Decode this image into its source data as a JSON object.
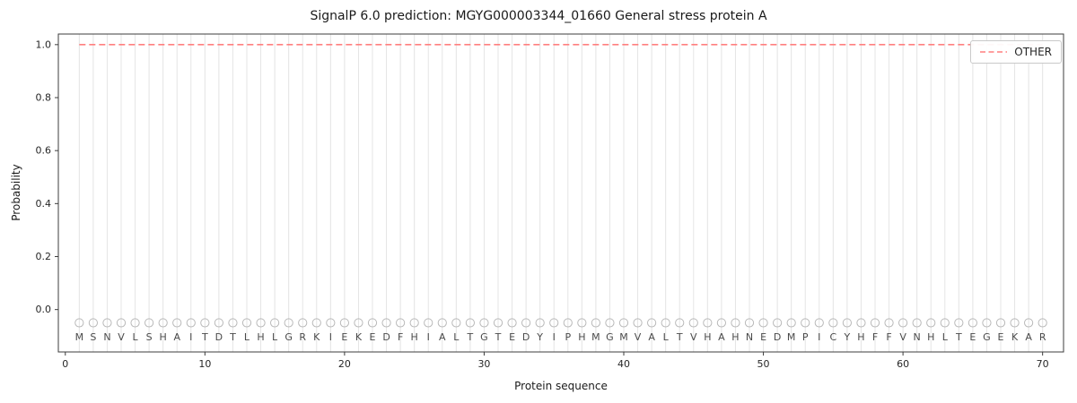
{
  "chart_data": {
    "type": "line",
    "title": "SignalP 6.0 prediction: MGYG000003344_01660 General stress protein A",
    "xlabel": "Protein sequence",
    "ylabel": "Probability",
    "xlim": [
      -0.5,
      71.5
    ],
    "ylim": [
      -0.16,
      1.04
    ],
    "xticks": [
      0,
      10,
      20,
      30,
      40,
      50,
      60,
      70
    ],
    "yticks": [
      "0.0",
      "0.2",
      "0.4",
      "0.6",
      "0.8",
      "1.0"
    ],
    "grid": "vertical-line-per-residue",
    "legend_position": "upper-right",
    "sequence": "MSNVLSHAITDTLHLGRKIEKEDFHIALTGTEDYIPHMGMVALTVHAHNEDMPICYHFFVNHLTEGEKAR",
    "marker_y": -0.05,
    "letter_y": -0.105,
    "series": [
      {
        "name": "OTHER",
        "color": "#ff7f7f",
        "line_style": "dashed",
        "x_start": 1,
        "values": [
          1.0,
          1.0,
          1.0,
          1.0,
          1.0,
          1.0,
          1.0,
          1.0,
          1.0,
          1.0,
          1.0,
          1.0,
          1.0,
          1.0,
          1.0,
          1.0,
          1.0,
          1.0,
          1.0,
          1.0,
          1.0,
          1.0,
          1.0,
          1.0,
          1.0,
          1.0,
          1.0,
          1.0,
          1.0,
          1.0,
          1.0,
          1.0,
          1.0,
          1.0,
          1.0,
          1.0,
          1.0,
          1.0,
          1.0,
          1.0,
          1.0,
          1.0,
          1.0,
          1.0,
          1.0,
          1.0,
          1.0,
          1.0,
          1.0,
          1.0,
          1.0,
          1.0,
          1.0,
          1.0,
          1.0,
          1.0,
          1.0,
          1.0,
          1.0,
          1.0,
          1.0,
          1.0,
          1.0,
          1.0,
          1.0,
          1.0,
          1.0,
          1.0,
          1.0,
          1.0
        ]
      }
    ]
  }
}
